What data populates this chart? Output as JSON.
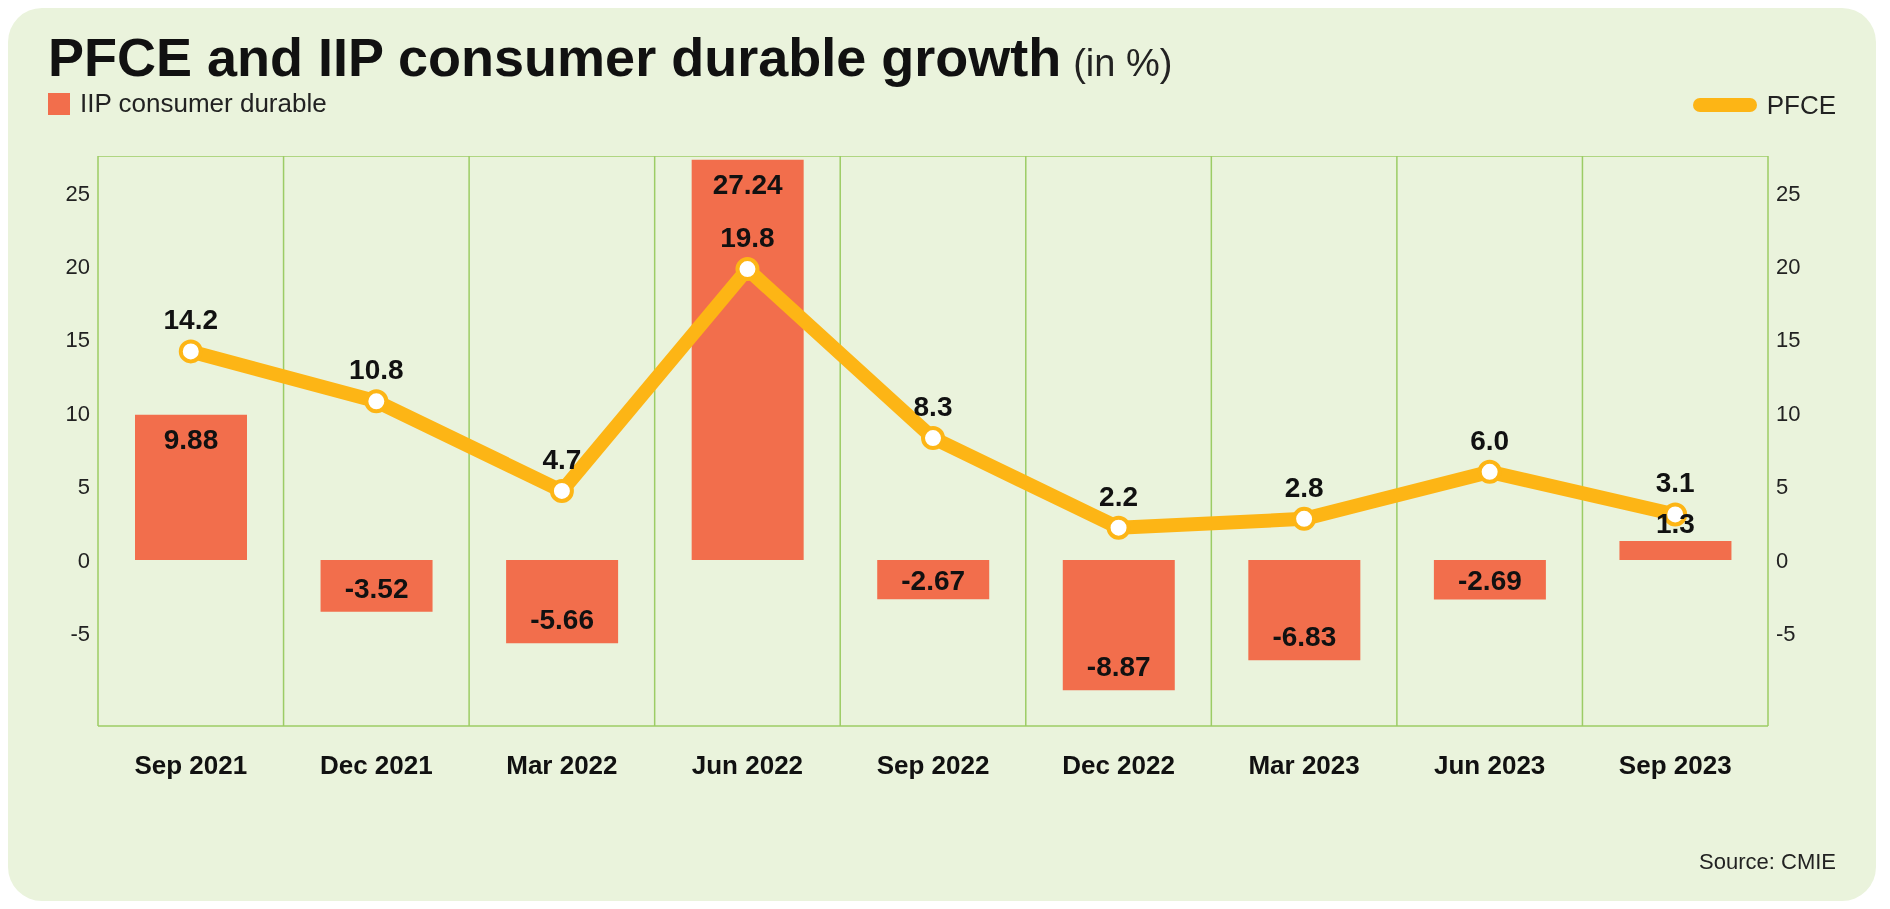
{
  "chart_data": {
    "type": "bar",
    "title": "PFCE and IIP consumer durable growth",
    "subtitle": "(in %)",
    "annotations": [
      "Source: CMIE"
    ],
    "categories": [
      "Sep 2021",
      "Dec 2021",
      "Mar 2022",
      "Jun 2022",
      "Sep 2022",
      "Dec 2022",
      "Mar 2023",
      "Jun 2023",
      "Sep 2023"
    ],
    "series": [
      {
        "name": "IIP consumer durable",
        "color": "#f26e4c",
        "values": [
          9.88,
          -3.52,
          -5.66,
          27.24,
          -2.67,
          -8.87,
          -6.83,
          -2.69,
          1.3
        ],
        "value_labels": [
          "9.88",
          "-3.52",
          "-5.66",
          "27.24",
          "-2.67",
          "-8.87",
          "-6.83",
          "-2.69",
          "1.3"
        ]
      },
      {
        "name": "PFCE",
        "type": "line",
        "color": "#fdb515",
        "marker": "circle",
        "values": [
          14.2,
          10.8,
          4.7,
          19.8,
          8.3,
          2.2,
          2.8,
          6.0,
          3.1
        ],
        "value_labels": [
          "14.2",
          "10.8",
          "4.7",
          "19.8",
          "8.3",
          "2.2",
          "2.8",
          "6.0",
          "3.1"
        ]
      }
    ],
    "ylim": [
      -11.3,
      27.5
    ],
    "yticks": [
      -5,
      0,
      5,
      10,
      15,
      20,
      25
    ],
    "y2lim": [
      -11.3,
      27.5
    ],
    "y2ticks": [
      -5,
      0,
      5,
      10,
      15,
      20,
      25
    ],
    "grid": true,
    "legend": "top"
  }
}
